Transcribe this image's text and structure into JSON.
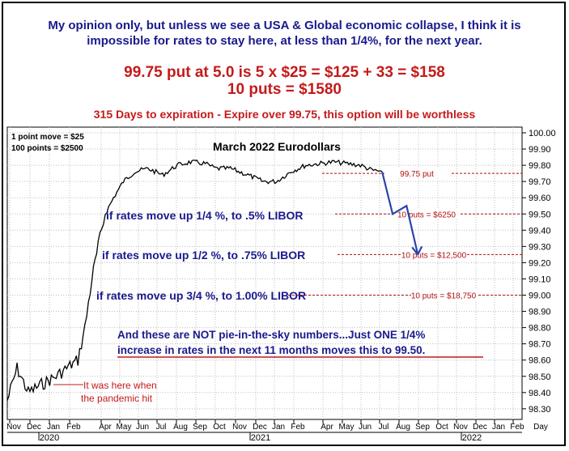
{
  "header": {
    "line1": "My opinion only, but unless we see a USA & Global economic collapse, I think it is",
    "line2": "impossible for rates to stay here, at less than 1/4%, for the next year.",
    "line3": "99.75 put at 5.0 is 5 x $25 = $125 + 33 = $158",
    "line4": "10 puts = $1580",
    "line5": "315 Days to expiration - Expire over 99.75, this option will be worthless"
  },
  "chart_data": {
    "type": "line",
    "title": "March 2022 Eurodollars",
    "ylim": [
      98.2,
      100.0
    ],
    "y_ticks": [
      "100.00",
      "99.90",
      "99.80",
      "99.70",
      "99.60",
      "99.50",
      "99.40",
      "99.30",
      "99.20",
      "99.10",
      "99.00",
      "98.90",
      "98.80",
      "98.70",
      "98.60",
      "98.50",
      "98.40",
      "98.30"
    ],
    "x_ticks": [
      "Nov",
      "Dec",
      "Jan",
      "Feb",
      "Apr",
      "May",
      "Jun",
      "Jul",
      "Aug",
      "Sep",
      "Oct",
      "Nov",
      "Dec",
      "Jan",
      "Feb",
      "Apr",
      "May",
      "Jun",
      "Jul",
      "Aug",
      "Sep",
      "Oct",
      "Nov",
      "Dec",
      "Jan",
      "Feb"
    ],
    "year_labels": [
      "2020",
      "2021",
      "2022"
    ],
    "x_axis_end_label": "Day",
    "grid": true,
    "series": [
      {
        "x": [
          "2019-11-01",
          "2019-11-15",
          "2019-12-01",
          "2019-12-20",
          "2020-01-10",
          "2020-01-25",
          "2020-02-10",
          "2020-02-20",
          "2020-03-01",
          "2020-03-10",
          "2020-03-20",
          "2020-04-01",
          "2020-04-15",
          "2020-05-01",
          "2020-05-20",
          "2020-06-10",
          "2020-07-01",
          "2020-07-20",
          "2020-08-10",
          "2020-08-25",
          "2020-09-15",
          "2020-10-10",
          "2020-11-01",
          "2020-11-20",
          "2020-12-10",
          "2021-01-01",
          "2021-01-20",
          "2021-02-10",
          "2021-03-01",
          "2021-03-20",
          "2021-04-05",
          "2021-04-20"
        ],
        "y": [
          98.35,
          98.55,
          98.4,
          98.45,
          98.5,
          98.55,
          98.6,
          98.8,
          99.1,
          99.3,
          99.5,
          99.6,
          99.7,
          99.76,
          99.78,
          99.74,
          99.8,
          99.82,
          99.81,
          99.78,
          99.78,
          99.74,
          99.7,
          99.7,
          99.76,
          99.8,
          99.81,
          99.82,
          99.81,
          99.8,
          99.77,
          99.76
        ]
      }
    ],
    "projection": {
      "x": [
        "2021-04-20",
        "2021-05-05",
        "2021-05-25",
        "2021-06-10"
      ],
      "y": [
        99.76,
        99.5,
        99.55,
        99.25
      ]
    },
    "reference_lines": [
      {
        "value": 99.75,
        "label": "99.75 put"
      },
      {
        "value": 99.5,
        "label": "10 puts = $6250"
      },
      {
        "value": 99.25,
        "label": "10 puts = $12,500"
      },
      {
        "value": 99.0,
        "label": "10 puts = $18,750"
      }
    ],
    "annotations": {
      "corner1": "1 point move = $25",
      "corner2": "100 points = $2500",
      "scenario1": "if rates move up 1/4 %, to .5% LIBOR",
      "scenario2": "if rates move up 1/2 %, to .75% LIBOR",
      "scenario3": "if rates move up 3/4 %, to 1.00% LIBOR",
      "note1": "And these are NOT pie-in-the-sky numbers...Just ONE 1/4%",
      "note2": "increase in rates in the next 11 months moves this to 99.50.",
      "pandemic1": "It was here when",
      "pandemic2": "the pandemic hit"
    },
    "colors": {
      "price_line": "#000000",
      "projection": "#2a44a8",
      "reference": "#b01010",
      "scenario_text": "#1a1a8c",
      "note_text": "#1a1a8c",
      "red_text": "#c41a1a",
      "grid": "#bdbdbd"
    }
  }
}
